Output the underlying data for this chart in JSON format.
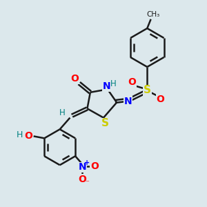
{
  "bg_color": "#dce8ec",
  "bond_color": "#1a1a1a",
  "colors": {
    "O": "#ff0000",
    "N": "#0000ff",
    "S": "#cccc00",
    "H": "#008080",
    "C": "#1a1a1a"
  },
  "lw": 1.8
}
